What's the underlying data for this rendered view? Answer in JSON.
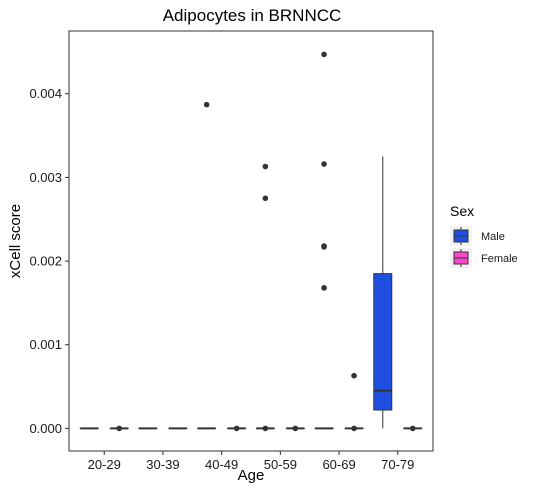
{
  "chart_data": {
    "type": "boxplot",
    "title": "Adipocytes in BRNNCC",
    "xlabel": "Age",
    "ylabel": "xCell score",
    "categories": [
      "20-29",
      "30-39",
      "40-49",
      "50-59",
      "60-69",
      "70-79"
    ],
    "ylim": [
      -0.00027,
      0.00475
    ],
    "yticks": [
      0.0,
      0.001,
      0.002,
      0.003,
      0.004
    ],
    "ytick_labels": [
      "0.000",
      "0.001",
      "0.002",
      "0.003",
      "0.004"
    ],
    "grid": false,
    "legend": {
      "title": "Sex",
      "placement": "right",
      "entries": [
        {
          "name": "Male",
          "color": "#1F4FE0"
        },
        {
          "name": "Female",
          "color": "#FF44CC"
        }
      ]
    },
    "series": [
      {
        "name": "Male",
        "color": "#1F4FE0",
        "boxes": [
          {
            "category": "20-29",
            "min": 0,
            "q1": 0,
            "median": 0,
            "q3": 0,
            "max": 0,
            "outliers": []
          },
          {
            "category": "30-39",
            "min": 0,
            "q1": 0,
            "median": 0,
            "q3": 0,
            "max": 0,
            "outliers": []
          },
          {
            "category": "40-49",
            "min": 0,
            "q1": 0,
            "median": 0,
            "q3": 0,
            "max": 0,
            "outliers": [
              0.00387
            ]
          },
          {
            "category": "50-59",
            "min": 0,
            "q1": 0,
            "median": 0,
            "q3": 0,
            "max": 0,
            "outliers": [
              0.00313,
              0.00275,
              0.0
            ]
          },
          {
            "category": "60-69",
            "min": 0,
            "q1": 0,
            "median": 0,
            "q3": 0,
            "max": 0,
            "outliers": [
              0.00447,
              0.00316,
              0.00218,
              0.00217,
              0.00168
            ]
          },
          {
            "category": "70-79",
            "min": 0,
            "q1": 0.00022,
            "median": 0.00045,
            "q3": 0.00185,
            "max": 0.00325,
            "outliers": []
          }
        ]
      },
      {
        "name": "Female",
        "color": "#FF44CC",
        "boxes": [
          {
            "category": "20-29",
            "min": 0,
            "q1": 0,
            "median": 0,
            "q3": 0,
            "max": 0,
            "outliers": [
              0.0
            ]
          },
          {
            "category": "30-39",
            "min": 0,
            "q1": 0,
            "median": 0,
            "q3": 0,
            "max": 0,
            "outliers": []
          },
          {
            "category": "40-49",
            "min": 0,
            "q1": 0,
            "median": 0,
            "q3": 0,
            "max": 0,
            "outliers": [
              0.0
            ]
          },
          {
            "category": "50-59",
            "min": 0,
            "q1": 0,
            "median": 0,
            "q3": 0,
            "max": 0,
            "outliers": [
              0.0
            ]
          },
          {
            "category": "60-69",
            "min": 0,
            "q1": 0,
            "median": 0,
            "q3": 0,
            "max": 0,
            "outliers": [
              0.00063,
              0.0
            ]
          },
          {
            "category": "70-79",
            "min": 0,
            "q1": 0,
            "median": 0,
            "q3": 0,
            "max": 0,
            "outliers": [
              0.0
            ]
          }
        ]
      }
    ]
  }
}
